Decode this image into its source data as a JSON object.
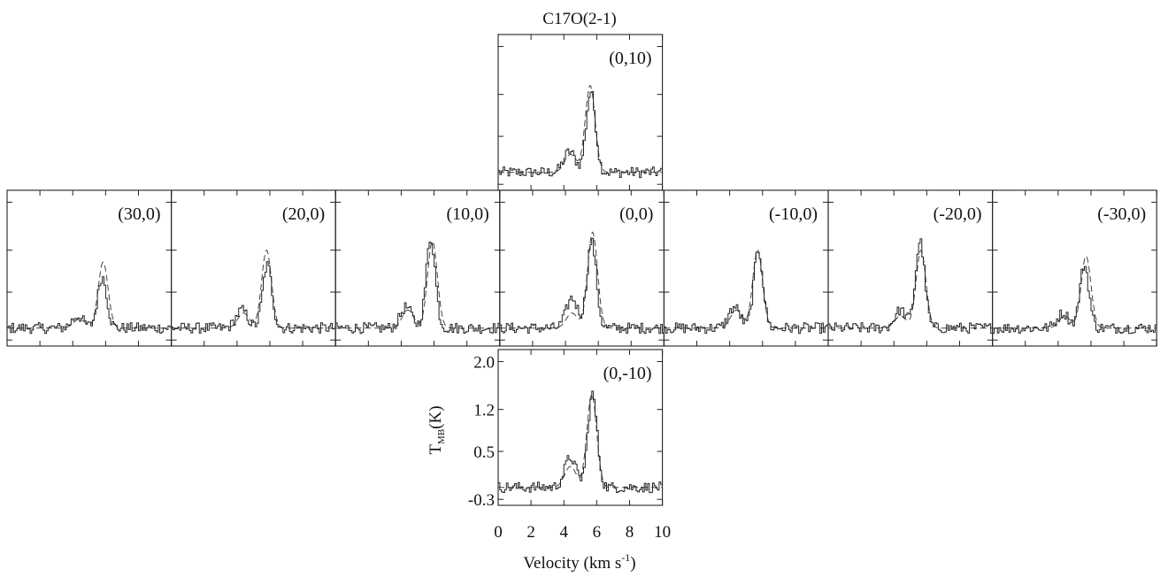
{
  "figure": {
    "title": "C17O(2-1)",
    "xlabel_main": "Velocity (km s",
    "xlabel_sup": "-1",
    "xlabel_end": ")",
    "ylabel_main": "T",
    "ylabel_sub": "MB",
    "ylabel_end": "(K)"
  },
  "chart_data": {
    "type": "line",
    "layout": "cross-shaped map grid of spectra (offsets in arcsec)",
    "xlim": [
      0,
      10
    ],
    "ylim": [
      -0.4,
      2.2
    ],
    "xticks": [
      0,
      2,
      4,
      6,
      8,
      10
    ],
    "xtick_labels": [
      "0",
      "2",
      "4",
      "6",
      "8",
      "10"
    ],
    "yticks": [
      -0.3,
      0.5,
      1.2,
      2.0
    ],
    "ytick_labels": [
      "-0.3",
      "0.5",
      "1.2",
      "2.0"
    ],
    "line_styles": {
      "observed": "solid histogram",
      "model": "dashed"
    },
    "panels": [
      {
        "label": "(0,10)",
        "observed": {
          "peak_velocity": 5.65,
          "peak": 1.35,
          "shoulder_velocity": 4.35,
          "shoulder": 0.35
        },
        "model": {
          "peak_velocity": 5.6,
          "peak": 1.45,
          "shoulder": 0.3
        }
      },
      {
        "label": "(30,0)",
        "observed": {
          "peak_velocity": 5.8,
          "peak": 0.85,
          "shoulder_velocity": 4.3,
          "shoulder": 0.2
        },
        "model": {
          "peak_velocity": 5.85,
          "peak": 1.1,
          "shoulder": 0.15
        }
      },
      {
        "label": "(20,0)",
        "observed": {
          "peak_velocity": 5.85,
          "peak": 1.05,
          "shoulder_velocity": 4.3,
          "shoulder": 0.3
        },
        "model": {
          "peak_velocity": 5.8,
          "peak": 1.3,
          "shoulder": 0.25
        }
      },
      {
        "label": "(10,0)",
        "observed": {
          "peak_velocity": 5.8,
          "peak": 1.5,
          "shoulder_velocity": 4.3,
          "shoulder": 0.35
        },
        "model": {
          "peak_velocity": 5.9,
          "peak": 1.45,
          "shoulder": 0.3
        }
      },
      {
        "label": "(0,0)",
        "observed": {
          "peak_velocity": 5.6,
          "peak": 1.45,
          "shoulder_velocity": 4.4,
          "shoulder": 0.5
        },
        "model": {
          "peak_velocity": 5.65,
          "peak": 1.6,
          "shoulder": 0.25
        }
      },
      {
        "label": "(-10,0)",
        "observed": {
          "peak_velocity": 5.75,
          "peak": 1.3,
          "shoulder_velocity": 4.3,
          "shoulder": 0.35
        },
        "model": {
          "peak_velocity": 5.7,
          "peak": 1.3,
          "shoulder": 0.3
        }
      },
      {
        "label": "(-20,0)",
        "observed": {
          "peak_velocity": 5.6,
          "peak": 1.45,
          "shoulder_velocity": 4.4,
          "shoulder": 0.3
        },
        "model": {
          "peak_velocity": 5.65,
          "peak": 1.3,
          "shoulder": 0.2
        }
      },
      {
        "label": "(-30,0)",
        "observed": {
          "peak_velocity": 5.6,
          "peak": 1.05,
          "shoulder_velocity": 4.3,
          "shoulder": 0.25
        },
        "model": {
          "peak_velocity": 5.7,
          "peak": 1.2,
          "shoulder": 0.2
        }
      },
      {
        "label": "(0,-10)",
        "observed": {
          "peak_velocity": 5.75,
          "peak": 1.55,
          "shoulder_velocity": 4.4,
          "shoulder": 0.5
        },
        "model": {
          "peak_velocity": 5.7,
          "peak": 1.55,
          "shoulder": 0.35
        }
      }
    ]
  }
}
